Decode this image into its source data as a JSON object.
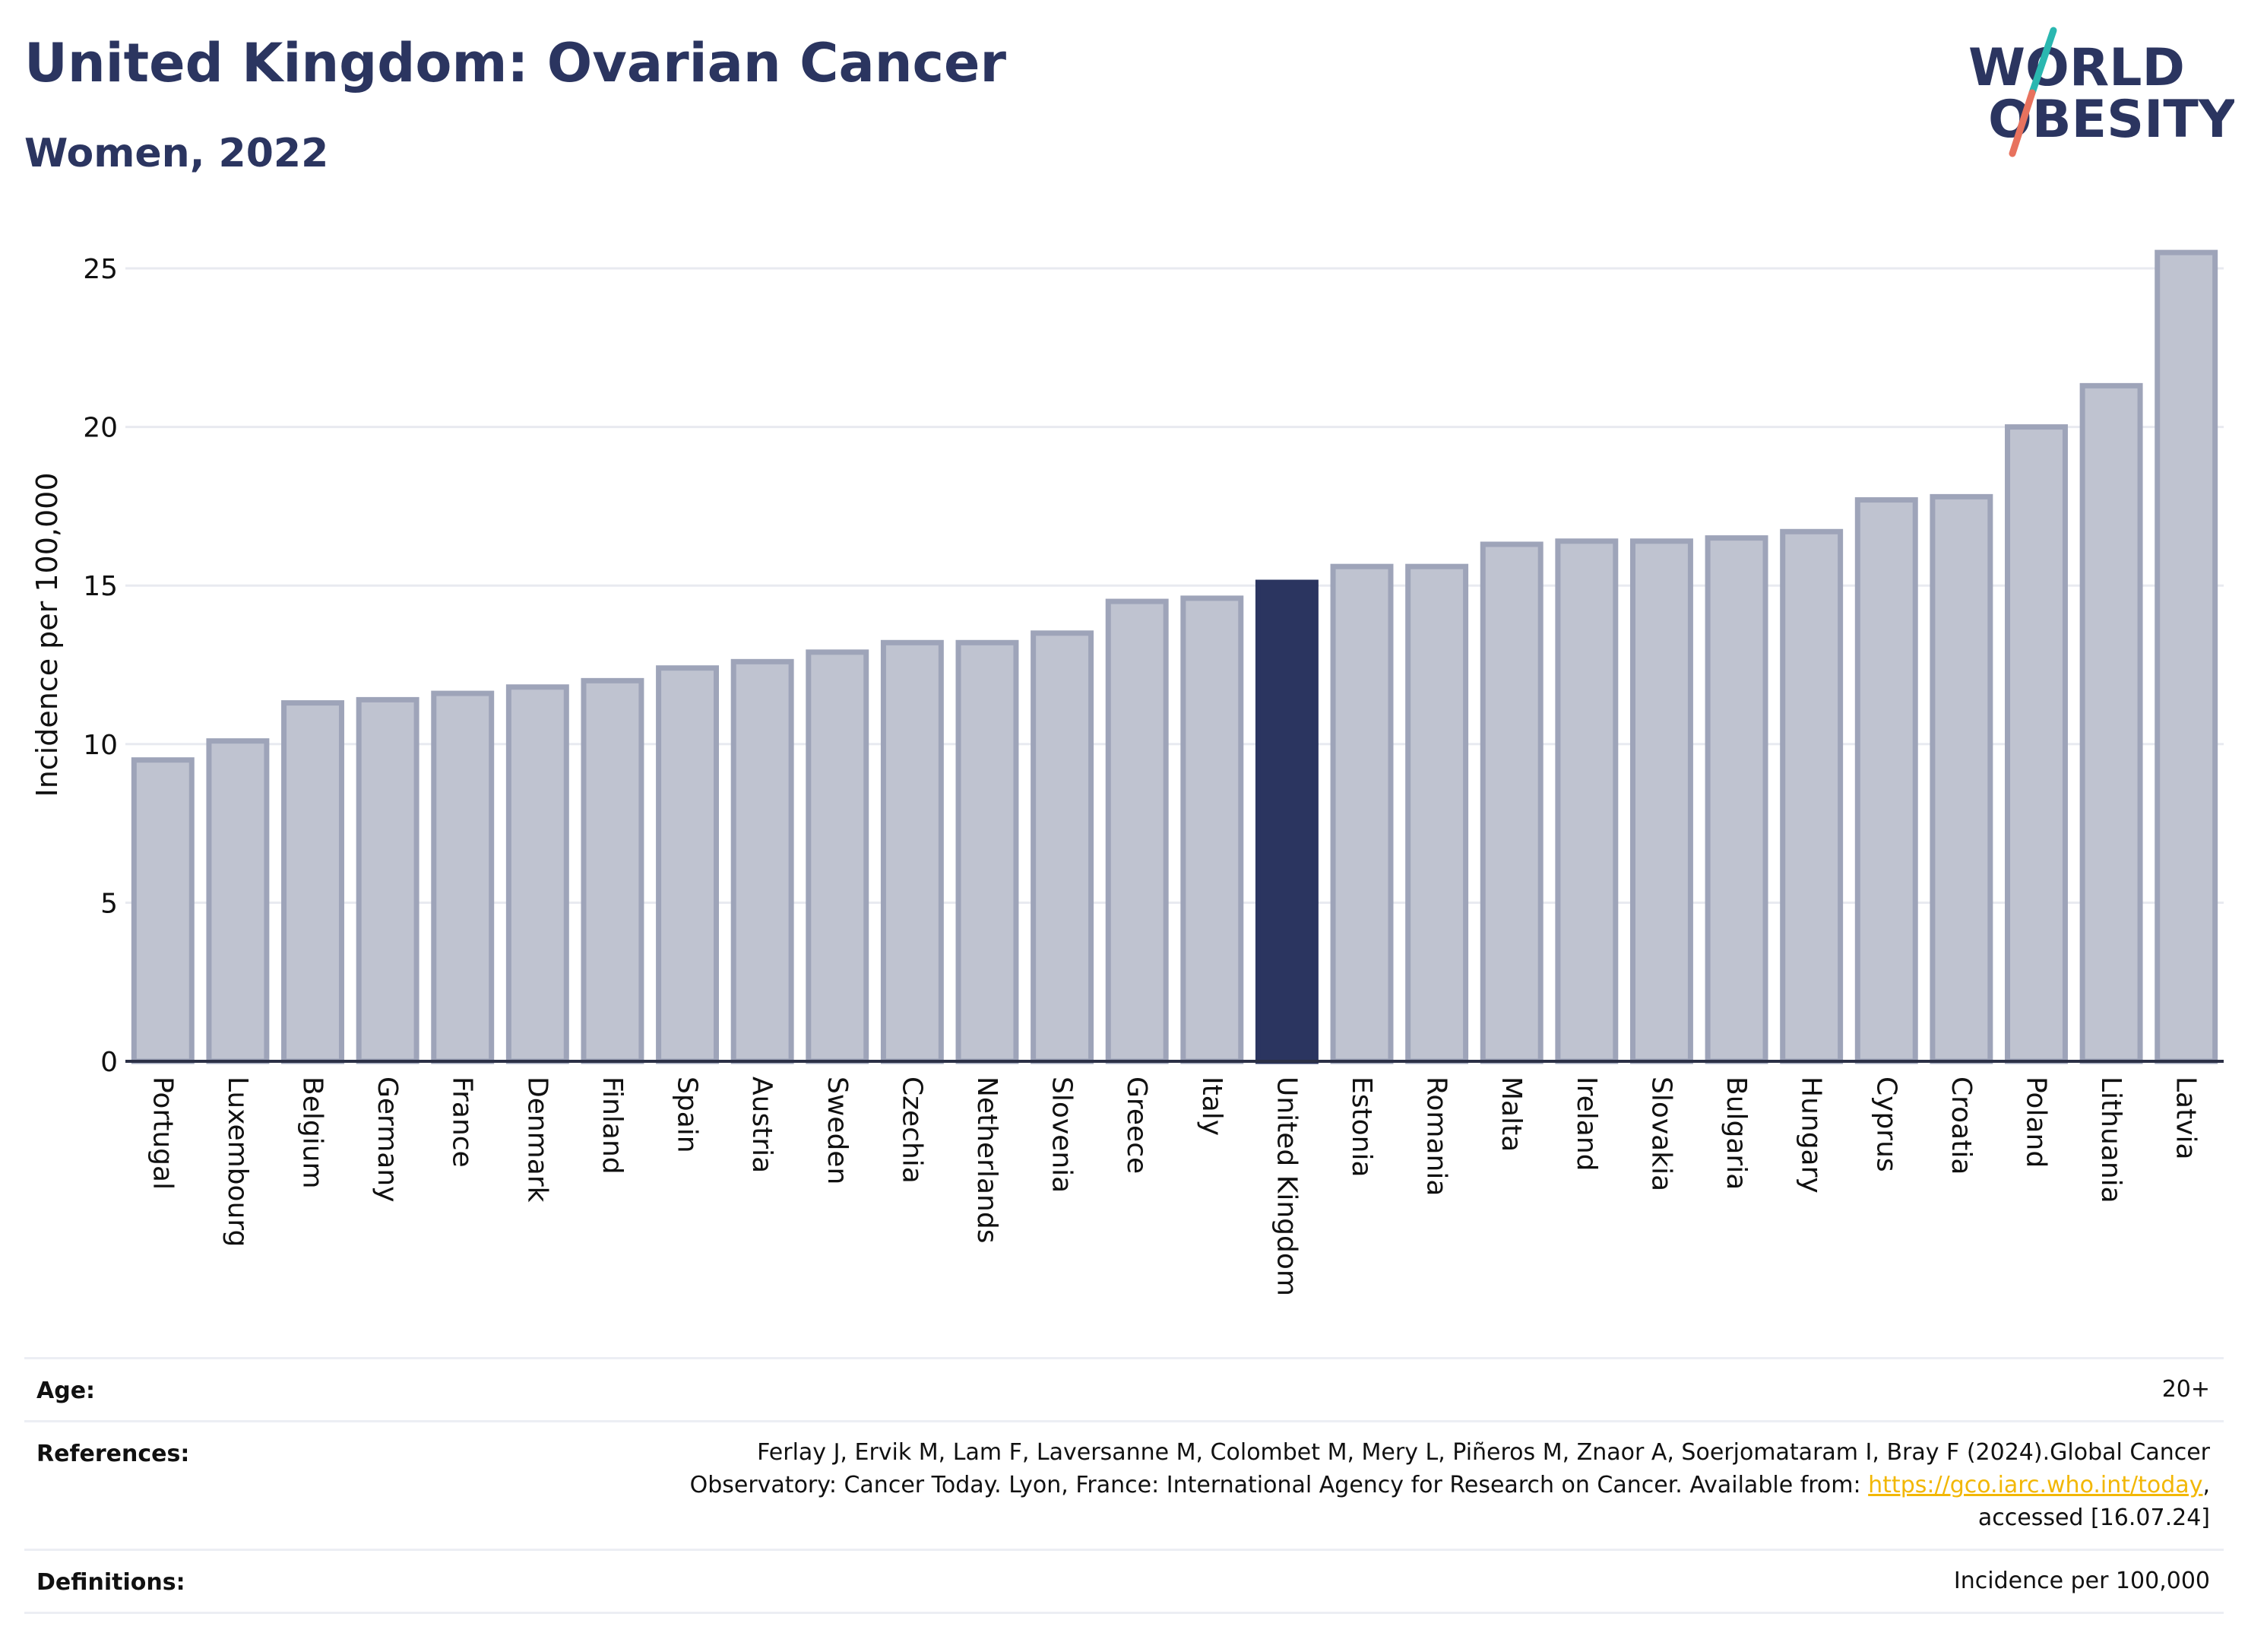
{
  "header": {
    "title": "United Kingdom: Ovarian Cancer",
    "subtitle": "Women, 2022"
  },
  "logo": {
    "line1": "WORLD",
    "line2": "OBESITY",
    "name": "world-obesity-logo"
  },
  "colors": {
    "bar": "#bfc3d0",
    "bar_edge": "#9ea4b9",
    "highlight": "#2b3560",
    "title": "#2b3560",
    "grid": "#e8eaf0",
    "link": "#f2b705",
    "logo_teal": "#2ab7b0",
    "logo_coral": "#e8725e"
  },
  "chart_data": {
    "type": "bar",
    "categories": [
      "Portugal",
      "Luxembourg",
      "Belgium",
      "Germany",
      "France",
      "Denmark",
      "Finland",
      "Spain",
      "Austria",
      "Sweden",
      "Czechia",
      "Netherlands",
      "Slovenia",
      "Greece",
      "Italy",
      "United Kingdom",
      "Estonia",
      "Romania",
      "Malta",
      "Ireland",
      "Slovakia",
      "Bulgaria",
      "Hungary",
      "Cyprus",
      "Croatia",
      "Poland",
      "Lithuania",
      "Latvia"
    ],
    "values": [
      9.5,
      10.1,
      11.3,
      11.4,
      11.6,
      11.8,
      12.0,
      12.4,
      12.6,
      12.9,
      13.2,
      13.2,
      13.5,
      14.5,
      14.6,
      15.1,
      15.6,
      15.6,
      16.3,
      16.4,
      16.4,
      16.5,
      16.7,
      17.7,
      17.8,
      20.0,
      21.3,
      25.5
    ],
    "highlight": "United Kingdom",
    "ylabel": "Incidence per 100,000",
    "ylim": [
      0,
      26
    ],
    "yticks": [
      0,
      5,
      10,
      15,
      20,
      25
    ],
    "grid": true
  },
  "info": {
    "age_label": "Age:",
    "age_value": "20+",
    "references_label": "References:",
    "references_line1": "Ferlay J, Ervik M, Lam F, Laversanne M, Colombet M, Mery L, Piñeros M, Znaor A, Soerjomataram I, Bray F (2024).Global Cancer",
    "references_line2": "Observatory: Cancer Today. Lyon, France: International Agency for Research on Cancer. Available from: ",
    "references_link": "https://gco.iarc.who.int/today",
    "references_line2_end": ",",
    "references_line3": "accessed [16.07.24]",
    "definitions_label": "Definitions:",
    "definitions_value": "Incidence per 100,000"
  }
}
